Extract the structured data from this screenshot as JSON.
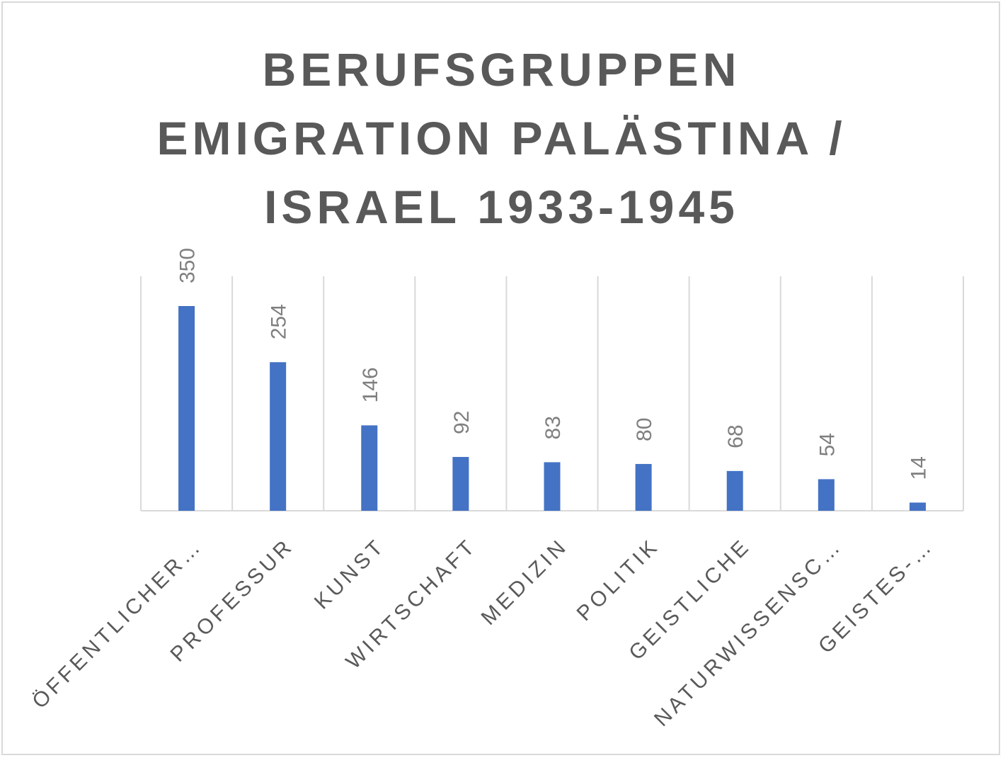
{
  "chart_data": {
    "type": "bar",
    "title_lines": [
      "BERUFSGRUPPEN",
      "EMIGRATION PALÄSTINA /",
      "ISRAEL 1933-1945"
    ],
    "categories": [
      "ÖFFENTLICHER…",
      "PROFESSUR",
      "KUNST",
      "WIRTSCHAFT",
      "MEDIZIN",
      "POLITIK",
      "GEISTLICHE",
      "NATURWISSENSC…",
      "GEISTES-…"
    ],
    "values": [
      350,
      254,
      146,
      92,
      83,
      80,
      68,
      54,
      14
    ],
    "data_labels": [
      "350",
      "254",
      "146",
      "92",
      "83",
      "80",
      "68",
      "54",
      "14"
    ],
    "ylim": [
      0,
      350
    ],
    "grid": "vertical",
    "legend": "none",
    "bar_color": "#4472c4"
  }
}
